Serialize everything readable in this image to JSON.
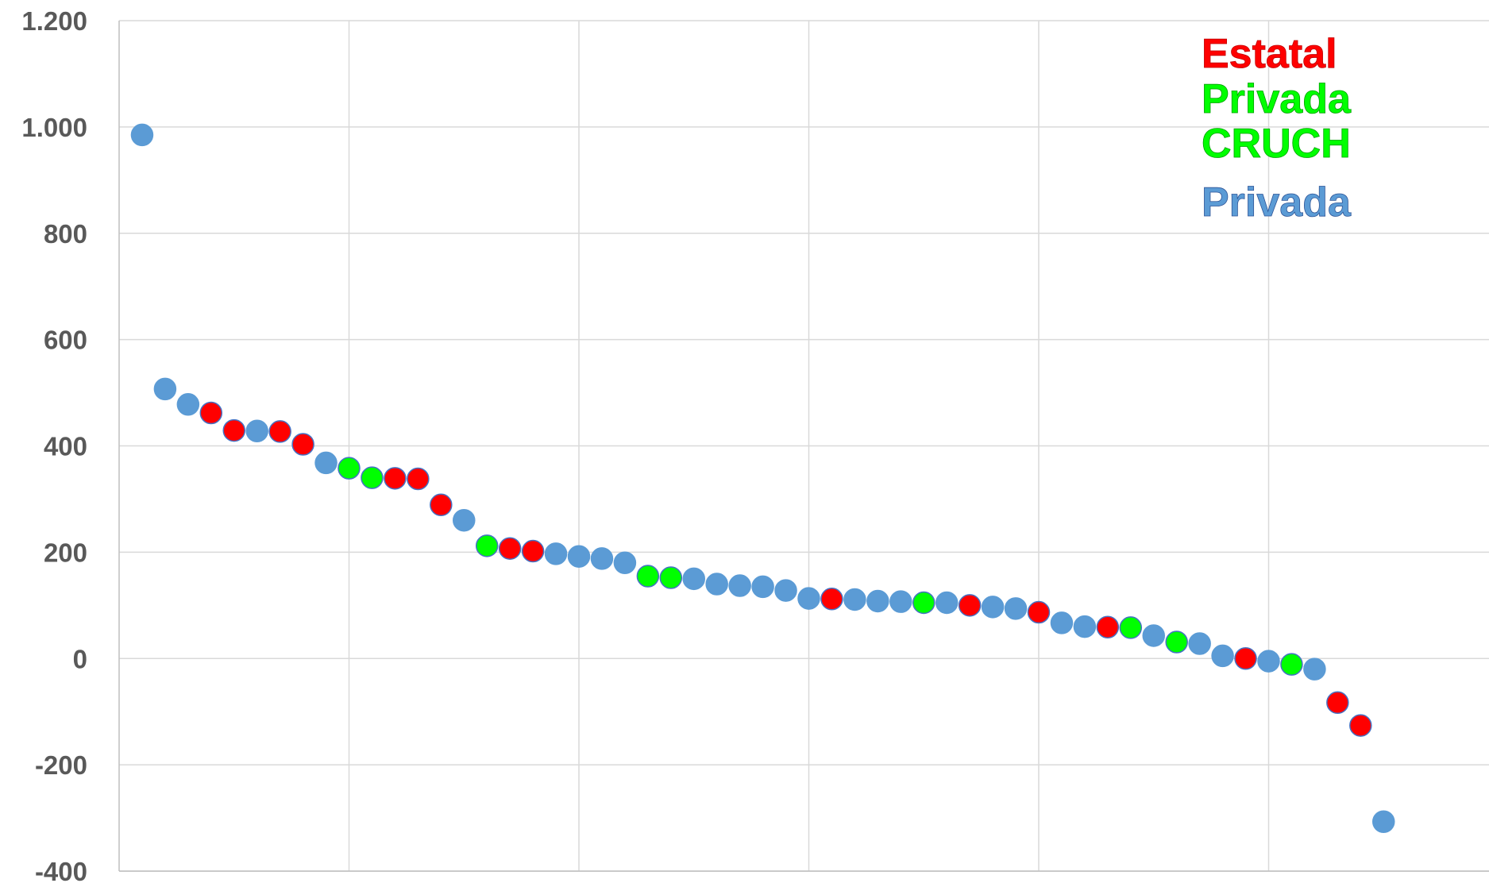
{
  "chart_data": {
    "type": "scatter",
    "title": "",
    "xlabel": "",
    "ylabel": "",
    "ylim": [
      -400,
      1200
    ],
    "y_ticks": [
      -400,
      -200,
      0,
      200,
      400,
      600,
      800,
      1000,
      1200
    ],
    "y_tick_labels": [
      "-400",
      "-200",
      "0",
      "200",
      "400",
      "600",
      "800",
      "1.000",
      "1.200"
    ],
    "x_range": [
      0,
      60
    ],
    "x_gridlines": [
      10,
      20,
      30,
      40,
      50,
      60
    ],
    "grid": true,
    "legend_position": "top-right",
    "legend": [
      {
        "label": "Estatal",
        "category": "E",
        "color": "#ff0000"
      },
      {
        "label": "Privada\nCRUCH",
        "category": "C",
        "color": "#00ff00"
      },
      {
        "label": "Privada",
        "category": "P",
        "color": "#5b9bd5"
      }
    ],
    "categories": {
      "E": {
        "color": "#ff0000"
      },
      "C": {
        "color": "#00ff00"
      },
      "P": {
        "color": "#5b9bd5"
      }
    },
    "points": [
      {
        "x": 1,
        "y": 985,
        "category": "P"
      },
      {
        "x": 2,
        "y": 507,
        "category": "P"
      },
      {
        "x": 3,
        "y": 478,
        "category": "P"
      },
      {
        "x": 4,
        "y": 462,
        "category": "E"
      },
      {
        "x": 5,
        "y": 429,
        "category": "E"
      },
      {
        "x": 6,
        "y": 428,
        "category": "P"
      },
      {
        "x": 7,
        "y": 427,
        "category": "E"
      },
      {
        "x": 8,
        "y": 403,
        "category": "E"
      },
      {
        "x": 9,
        "y": 368,
        "category": "P"
      },
      {
        "x": 10,
        "y": 358,
        "category": "C"
      },
      {
        "x": 11,
        "y": 340,
        "category": "C"
      },
      {
        "x": 12,
        "y": 339,
        "category": "E"
      },
      {
        "x": 13,
        "y": 338,
        "category": "E"
      },
      {
        "x": 14,
        "y": 289,
        "category": "E"
      },
      {
        "x": 15,
        "y": 260,
        "category": "P"
      },
      {
        "x": 16,
        "y": 212,
        "category": "C"
      },
      {
        "x": 17,
        "y": 207,
        "category": "E"
      },
      {
        "x": 18,
        "y": 202,
        "category": "E"
      },
      {
        "x": 19,
        "y": 197,
        "category": "P"
      },
      {
        "x": 20,
        "y": 192,
        "category": "P"
      },
      {
        "x": 21,
        "y": 188,
        "category": "P"
      },
      {
        "x": 22,
        "y": 180,
        "category": "P"
      },
      {
        "x": 23,
        "y": 155,
        "category": "C"
      },
      {
        "x": 24,
        "y": 152,
        "category": "C"
      },
      {
        "x": 25,
        "y": 150,
        "category": "P"
      },
      {
        "x": 26,
        "y": 140,
        "category": "P"
      },
      {
        "x": 27,
        "y": 137,
        "category": "P"
      },
      {
        "x": 28,
        "y": 135,
        "category": "P"
      },
      {
        "x": 29,
        "y": 128,
        "category": "P"
      },
      {
        "x": 30,
        "y": 113,
        "category": "P"
      },
      {
        "x": 31,
        "y": 112,
        "category": "E"
      },
      {
        "x": 32,
        "y": 111,
        "category": "P"
      },
      {
        "x": 33,
        "y": 108,
        "category": "P"
      },
      {
        "x": 34,
        "y": 107,
        "category": "P"
      },
      {
        "x": 35,
        "y": 105,
        "category": "C"
      },
      {
        "x": 36,
        "y": 105,
        "category": "P"
      },
      {
        "x": 37,
        "y": 100,
        "category": "E"
      },
      {
        "x": 38,
        "y": 97,
        "category": "P"
      },
      {
        "x": 39,
        "y": 94,
        "category": "P"
      },
      {
        "x": 40,
        "y": 87,
        "category": "E"
      },
      {
        "x": 41,
        "y": 67,
        "category": "P"
      },
      {
        "x": 42,
        "y": 60,
        "category": "P"
      },
      {
        "x": 43,
        "y": 59,
        "category": "E"
      },
      {
        "x": 44,
        "y": 58,
        "category": "C"
      },
      {
        "x": 45,
        "y": 43,
        "category": "P"
      },
      {
        "x": 46,
        "y": 31,
        "category": "C"
      },
      {
        "x": 47,
        "y": 28,
        "category": "P"
      },
      {
        "x": 48,
        "y": 5,
        "category": "P"
      },
      {
        "x": 49,
        "y": 0,
        "category": "E"
      },
      {
        "x": 50,
        "y": -5,
        "category": "P"
      },
      {
        "x": 51,
        "y": -11,
        "category": "C"
      },
      {
        "x": 52,
        "y": -20,
        "category": "P"
      },
      {
        "x": 53,
        "y": -83,
        "category": "E"
      },
      {
        "x": 54,
        "y": -126,
        "category": "E"
      },
      {
        "x": 55,
        "y": -307,
        "category": "P"
      }
    ]
  }
}
